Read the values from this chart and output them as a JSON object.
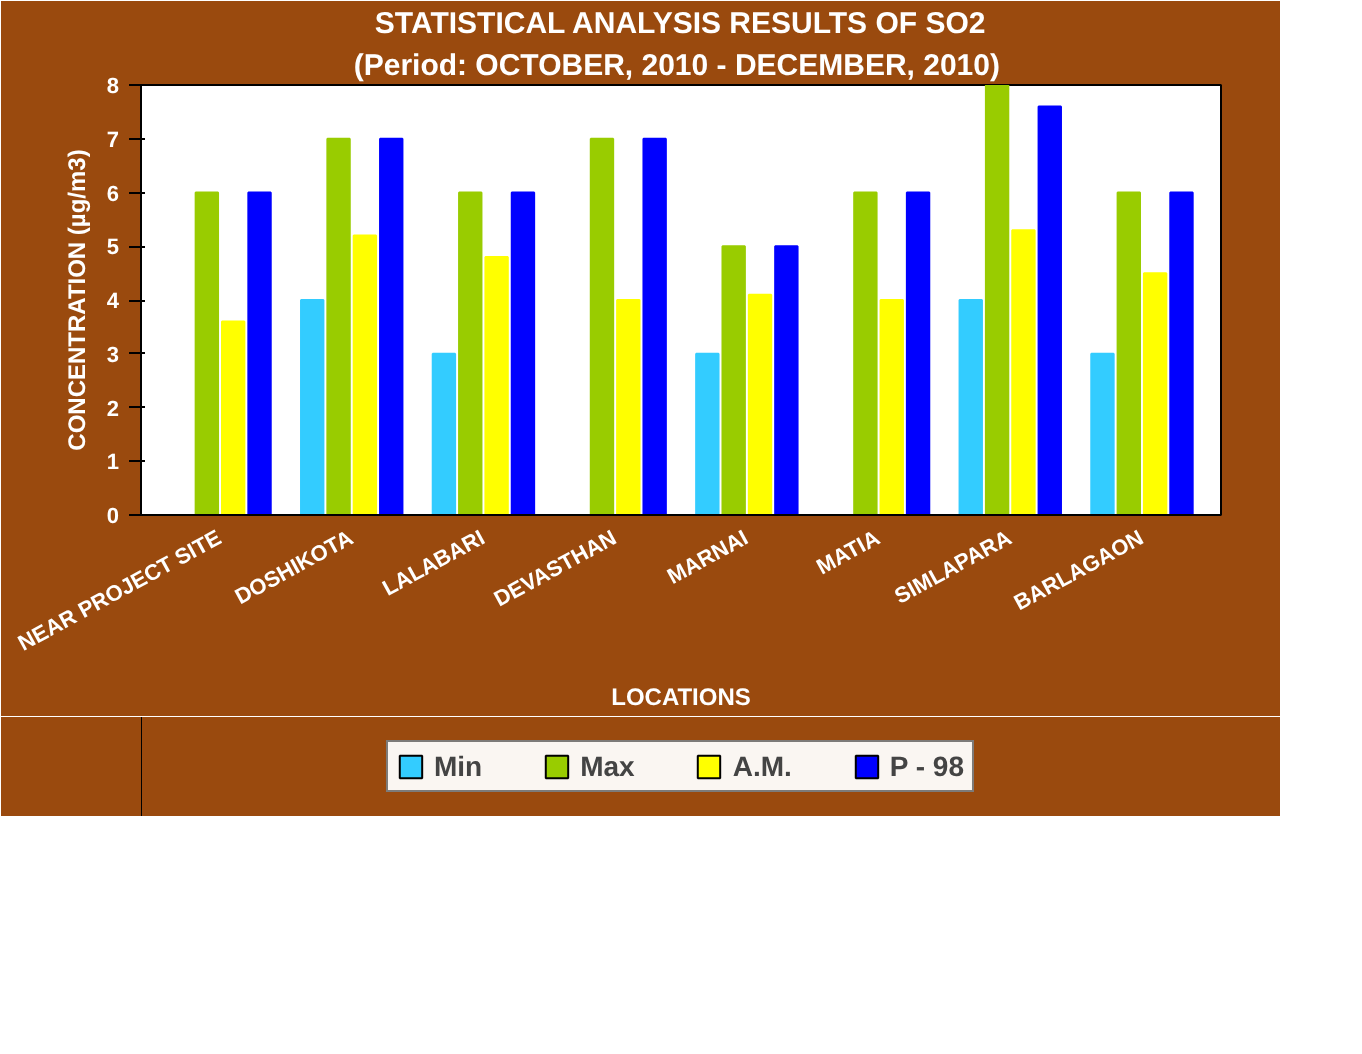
{
  "chart_data": {
    "type": "bar",
    "title": "STATISTICAL ANALYSIS RESULTS OF SO2",
    "subtitle": "(Period: OCTOBER, 2010  - DECEMBER, 2010)",
    "xlabel": "LOCATIONS",
    "ylabel": "CONCENTRATION (µg/m3)",
    "categories": [
      "NEAR PROJECT SITE",
      "DOSHIKOTA",
      "LALABARI",
      "DEVASTHAN",
      "MARNAI",
      "MATIA",
      "SIMLAPARA",
      "BARLAGAON"
    ],
    "series": [
      {
        "name": "Min",
        "color": "#33ccff",
        "values": [
          0,
          4,
          3,
          0,
          3,
          0,
          4,
          3
        ]
      },
      {
        "name": "Max",
        "color": "#99cc00",
        "values": [
          6,
          7,
          6,
          7,
          5,
          6,
          8,
          6
        ]
      },
      {
        "name": "A.M.",
        "color": "#ffff00",
        "values": [
          3.6,
          5.2,
          4.8,
          4.0,
          4.1,
          4.0,
          5.3,
          4.5
        ]
      },
      {
        "name": "P - 98",
        "color": "#0000ff",
        "values": [
          6,
          7,
          6,
          7,
          5,
          6,
          7.6,
          6
        ]
      }
    ],
    "ylim": [
      0,
      8
    ],
    "yticks": [
      0,
      1,
      2,
      3,
      4,
      5,
      6,
      7,
      8
    ],
    "grid": false,
    "legend": "bottom"
  }
}
